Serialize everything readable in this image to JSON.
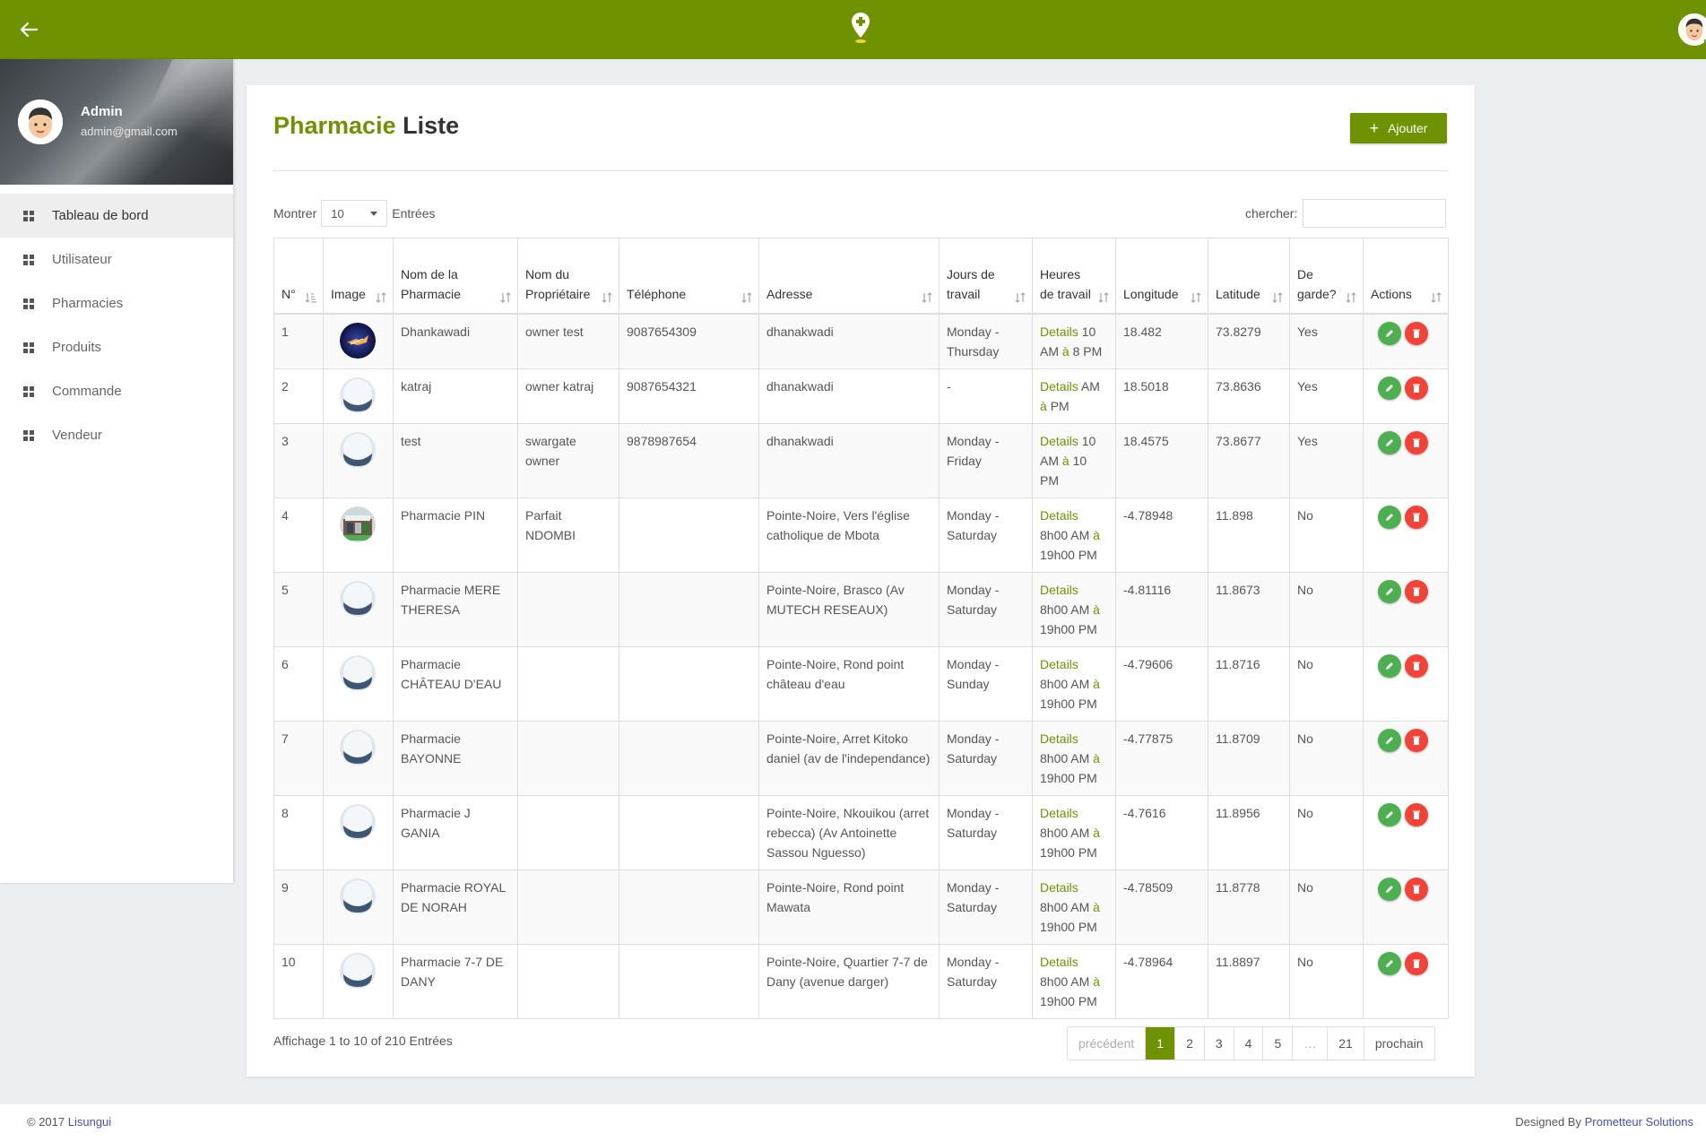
{
  "sidebar": {
    "profile": {
      "name": "Admin",
      "email": "admin@gmail.com"
    },
    "items": [
      {
        "label": "Tableau de bord"
      },
      {
        "label": "Utilisateur"
      },
      {
        "label": "Pharmacies"
      },
      {
        "label": "Produits"
      },
      {
        "label": "Commande"
      },
      {
        "label": "Vendeur"
      }
    ]
  },
  "page": {
    "title_accent": "Pharmacie",
    "title_rest": "Liste",
    "add_button": "Ajouter"
  },
  "controls": {
    "show_label": "Montrer",
    "entries_value": "10",
    "entries_label": "Entrées",
    "search_label": "chercher:",
    "search_value": ""
  },
  "table": {
    "headers": [
      "N°",
      "Image",
      "Nom de la Pharmacie",
      "Nom du Propriétaire",
      "Téléphone",
      "Adresse",
      "Jours de travail",
      "Heures de travail",
      "Longitude",
      "Latitude",
      "De garde?",
      "Actions"
    ],
    "details_label": "Details",
    "rows": [
      {
        "n": "1",
        "image": "photo-dark",
        "name": "Dhankawadi",
        "owner": "owner test",
        "phone": "9087654309",
        "address": "dhanakwadi",
        "days": "Monday - Thursday",
        "hours_a": "10 AM",
        "hours_sep": "à",
        "hours_b": "8 PM",
        "lon": "18.482",
        "lat": "73.8279",
        "garde": "Yes"
      },
      {
        "n": "2",
        "image": "placeholder",
        "name": "katraj",
        "owner": "owner katraj",
        "phone": "9087654321",
        "address": "dhanakwadi",
        "days": "-",
        "hours_a": "AM",
        "hours_sep": "à",
        "hours_b": "PM",
        "lon": "18.5018",
        "lat": "73.8636",
        "garde": "Yes"
      },
      {
        "n": "3",
        "image": "placeholder",
        "name": "test",
        "owner": "swargate owner",
        "phone": "9878987654",
        "address": "dhanakwadi",
        "days": "Monday - Friday",
        "hours_a": "10 AM",
        "hours_sep": "à",
        "hours_b": "10 PM",
        "lon": "18.4575",
        "lat": "73.8677",
        "garde": "Yes"
      },
      {
        "n": "4",
        "image": "photo-storefront",
        "name": "Pharmacie PIN",
        "owner": "Parfait NDOMBI",
        "phone": "",
        "address": "Pointe-Noire, Vers l'église catholique de Mbota",
        "days": "Monday - Saturday",
        "hours_a": "8h00 AM",
        "hours_sep": "à",
        "hours_b": "19h00 PM",
        "lon": "-4.78948",
        "lat": "11.898",
        "garde": "No"
      },
      {
        "n": "5",
        "image": "placeholder",
        "name": "Pharmacie MERE THERESA",
        "owner": "",
        "phone": "",
        "address": "Pointe-Noire, Brasco (Av MUTECH RESEAUX)",
        "days": "Monday - Saturday",
        "hours_a": "8h00 AM",
        "hours_sep": "à",
        "hours_b": "19h00 PM",
        "lon": "-4.81116",
        "lat": "11.8673",
        "garde": "No"
      },
      {
        "n": "6",
        "image": "placeholder",
        "name": "Pharmacie CHÂTEAU D'EAU",
        "owner": "",
        "phone": "",
        "address": "Pointe-Noire, Rond point château d'eau",
        "days": "Monday - Sunday",
        "hours_a": "8h00 AM",
        "hours_sep": "à",
        "hours_b": "19h00 PM",
        "lon": "-4.79606",
        "lat": "11.8716",
        "garde": "No"
      },
      {
        "n": "7",
        "image": "placeholder",
        "name": "Pharmacie BAYONNE",
        "owner": "",
        "phone": "",
        "address": "Pointe-Noire, Arret Kitoko daniel (av de l'independance)",
        "days": "Monday - Saturday",
        "hours_a": "8h00 AM",
        "hours_sep": "à",
        "hours_b": "19h00 PM",
        "lon": "-4.77875",
        "lat": "11.8709",
        "garde": "No"
      },
      {
        "n": "8",
        "image": "placeholder",
        "name": "Pharmacie J GANIA",
        "owner": "",
        "phone": "",
        "address": "Pointe-Noire, Nkouikou (arret rebecca) (Av Antoinette Sassou Nguesso)",
        "days": "Monday - Saturday",
        "hours_a": "8h00 AM",
        "hours_sep": "à",
        "hours_b": "19h00 PM",
        "lon": "-4.7616",
        "lat": "11.8956",
        "garde": "No"
      },
      {
        "n": "9",
        "image": "placeholder",
        "name": "Pharmacie ROYAL DE NORAH",
        "owner": "",
        "phone": "",
        "address": "Pointe-Noire, Rond point Mawata",
        "days": "Monday - Saturday",
        "hours_a": "8h00 AM",
        "hours_sep": "à",
        "hours_b": "19h00 PM",
        "lon": "-4.78509",
        "lat": "11.8778",
        "garde": "No"
      },
      {
        "n": "10",
        "image": "placeholder",
        "name": "Pharmacie 7-7 DE DANY",
        "owner": "",
        "phone": "",
        "address": "Pointe-Noire, Quartier 7-7 de Dany (avenue darger)",
        "days": "Monday - Saturday",
        "hours_a": "8h00 AM",
        "hours_sep": "à",
        "hours_b": "19h00 PM",
        "lon": "-4.78964",
        "lat": "11.8897",
        "garde": "No"
      }
    ]
  },
  "footer_info": "Affichage 1 to 10 of 210 Entrées",
  "pagination": {
    "prev": "précédent",
    "pages": [
      "1",
      "2",
      "3",
      "4",
      "5",
      "…",
      "21"
    ],
    "current": "1",
    "next": "prochain"
  },
  "footer": {
    "copyright": "© 2017",
    "brand": "Lisungui",
    "designed_by": "Designed By",
    "designer": "Prometteur Solutions"
  },
  "colors": {
    "brand": "#6e9200",
    "edit": "#4caf50",
    "delete": "#f44336",
    "link": "#3f51b5"
  },
  "icons": [
    "back-arrow-icon",
    "pin-logo-icon",
    "avatar-icon",
    "grid-icon",
    "sort-icon",
    "plus-icon",
    "pencil-icon",
    "trash-icon"
  ]
}
